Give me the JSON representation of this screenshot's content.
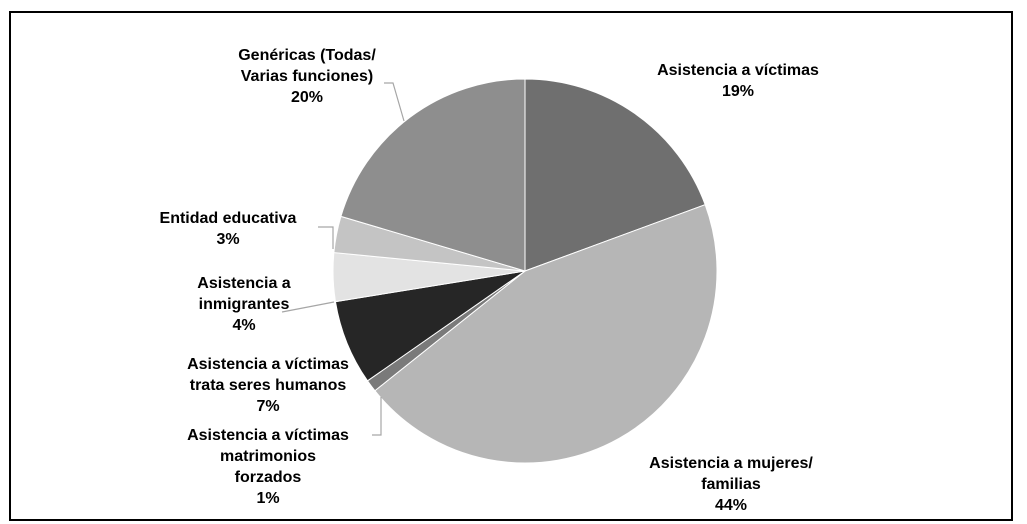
{
  "chart_data": {
    "type": "pie",
    "slices": [
      {
        "label_lines": [
          "Asistencia a víctimas"
        ],
        "pct_label": "19%",
        "value": 19,
        "color": "#6f6f6f"
      },
      {
        "label_lines": [
          "Asistencia a mujeres/",
          "familias"
        ],
        "pct_label": "44%",
        "value": 44,
        "color": "#b6b6b6"
      },
      {
        "label_lines": [
          "Asistencia a víctimas",
          "matrimonios",
          "forzados"
        ],
        "pct_label": "1%",
        "value": 1,
        "color": "#7a7a7a"
      },
      {
        "label_lines": [
          "Asistencia a víctimas",
          "trata seres humanos"
        ],
        "pct_label": "7%",
        "value": 7,
        "color": "#262626"
      },
      {
        "label_lines": [
          "Asistencia a",
          "inmigrantes"
        ],
        "pct_label": "4%",
        "value": 4,
        "color": "#e3e3e3"
      },
      {
        "label_lines": [
          "Entidad educativa"
        ],
        "pct_label": "3%",
        "value": 3,
        "color": "#c4c4c4"
      },
      {
        "label_lines": [
          "Genéricas (Todas/",
          "Varias funciones)"
        ],
        "pct_label": "20%",
        "value": 20,
        "color": "#8e8e8e"
      }
    ],
    "start_angle": "12 o'clock",
    "direction": "clockwise",
    "legend": "none (direct labels with leader lines)"
  }
}
